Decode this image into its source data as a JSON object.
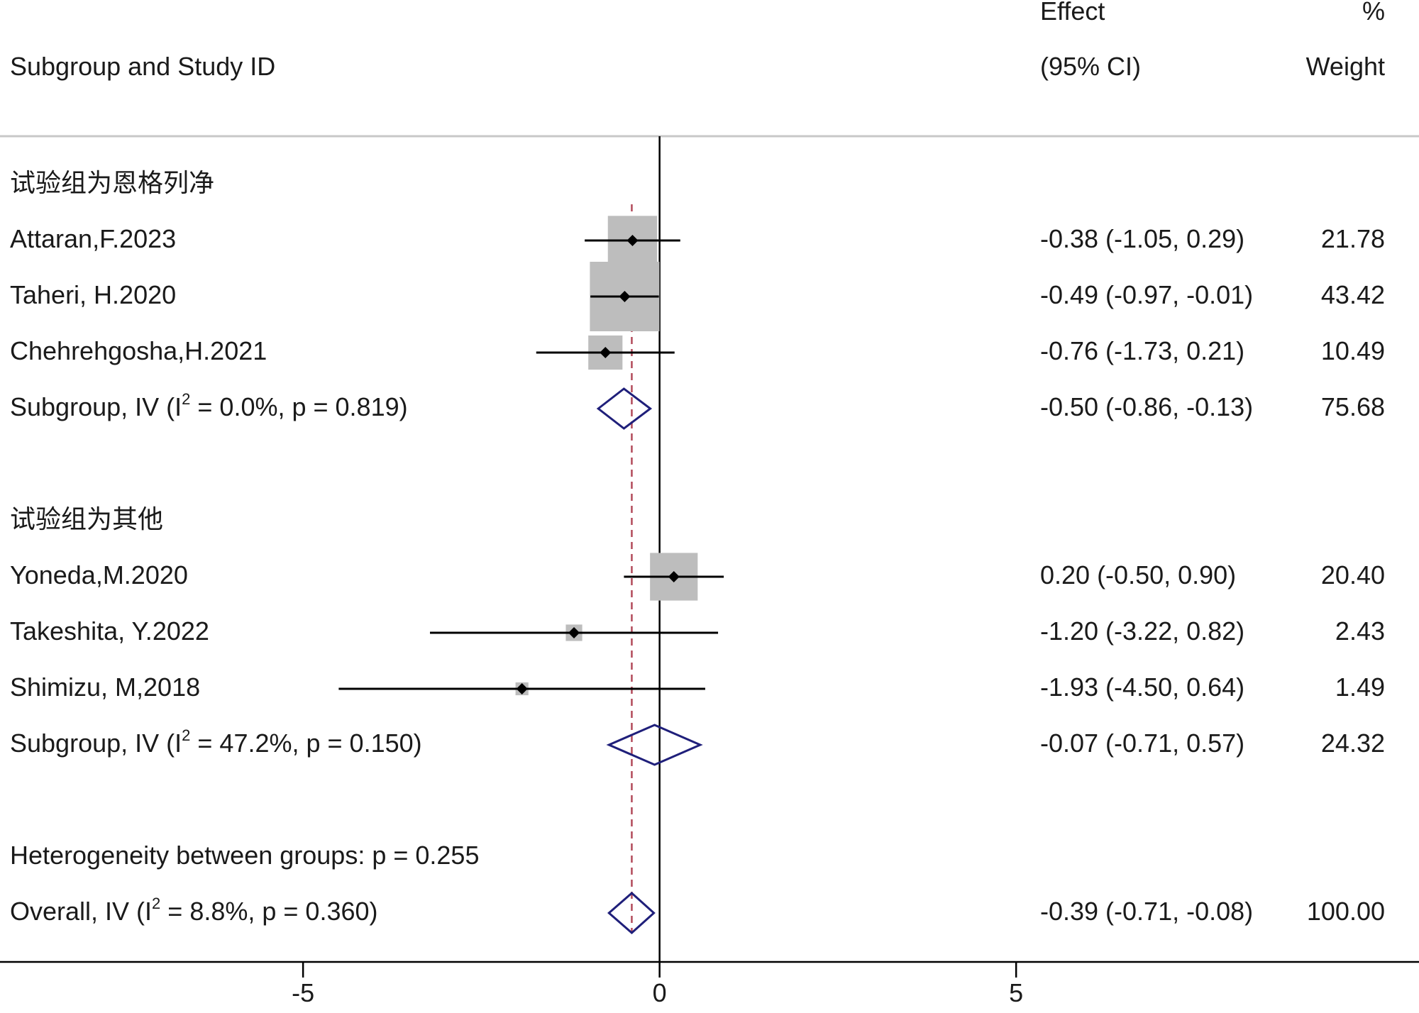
{
  "chart_data": {
    "type": "forest",
    "headers": {
      "study": "Subgroup and Study ID",
      "effect_line1": "Effect",
      "effect_line2": "(95% CI)",
      "weight_line1": "%",
      "weight_line2": "Weight"
    },
    "rows": [
      {
        "kind": "group",
        "label": "试验组为恩格列净"
      },
      {
        "kind": "study",
        "label": "Attaran,F.2023",
        "est": -0.38,
        "lo": -1.05,
        "hi": 0.29,
        "weight": 21.78,
        "ci_text": "-0.38 (-1.05, 0.29)",
        "weight_text": "21.78"
      },
      {
        "kind": "study",
        "label": "Taheri, H.2020",
        "est": -0.49,
        "lo": -0.97,
        "hi": -0.01,
        "weight": 43.42,
        "ci_text": "-0.49 (-0.97, -0.01)",
        "weight_text": "43.42"
      },
      {
        "kind": "study",
        "label": "Chehrehgosha,H.2021",
        "est": -0.76,
        "lo": -1.73,
        "hi": 0.21,
        "weight": 10.49,
        "ci_text": "-0.76 (-1.73, 0.21)",
        "weight_text": "10.49"
      },
      {
        "kind": "subtotal",
        "label_pre": "Subgroup, IV (I",
        "label_sup": "2",
        "label_post": " = 0.0%, p = 0.819)",
        "est": -0.5,
        "lo": -0.86,
        "hi": -0.13,
        "ci_text": "-0.50 (-0.86, -0.13)",
        "weight_text": "75.68"
      },
      {
        "kind": "blank"
      },
      {
        "kind": "group",
        "label": "试验组为其他"
      },
      {
        "kind": "study",
        "label": "Yoneda,M.2020",
        "est": 0.2,
        "lo": -0.5,
        "hi": 0.9,
        "weight": 20.4,
        "ci_text": "0.20 (-0.50, 0.90)",
        "weight_text": "20.40"
      },
      {
        "kind": "study",
        "label": "Takeshita, Y.2022",
        "est": -1.2,
        "lo": -3.22,
        "hi": 0.82,
        "weight": 2.43,
        "ci_text": "-1.20 (-3.22, 0.82)",
        "weight_text": "2.43"
      },
      {
        "kind": "study",
        "label": "Shimizu, M,2018",
        "est": -1.93,
        "lo": -4.5,
        "hi": 0.64,
        "weight": 1.49,
        "ci_text": "-1.93 (-4.50, 0.64)",
        "weight_text": "1.49"
      },
      {
        "kind": "subtotal",
        "label_pre": "Subgroup, IV (I",
        "label_sup": "2",
        "label_post": " = 47.2%, p = 0.150)",
        "est": -0.07,
        "lo": -0.71,
        "hi": 0.57,
        "ci_text": "-0.07 (-0.71, 0.57)",
        "weight_text": "24.32"
      },
      {
        "kind": "blank"
      },
      {
        "kind": "text",
        "label": "Heterogeneity between groups: p = 0.255"
      },
      {
        "kind": "overall",
        "label_pre": "Overall, IV (I",
        "label_sup": "2",
        "label_post": " = 8.8%, p = 0.360)",
        "est": -0.39,
        "lo": -0.71,
        "hi": -0.08,
        "ci_text": "-0.39 (-0.71, -0.08)",
        "weight_text": "100.00"
      }
    ],
    "overall_effect": -0.39,
    "null_value": 0,
    "xlim": [
      -9.25,
      10.65
    ],
    "x_ticks": [
      -5,
      0,
      5
    ],
    "x_tick_labels": [
      "-5",
      "0",
      "5"
    ],
    "colors": {
      "box": "#bdbdbd",
      "line": "#000000",
      "diamond": "#1f1f7a",
      "overall_line": "#b24a5a",
      "separator": "#c8c8c8"
    }
  }
}
